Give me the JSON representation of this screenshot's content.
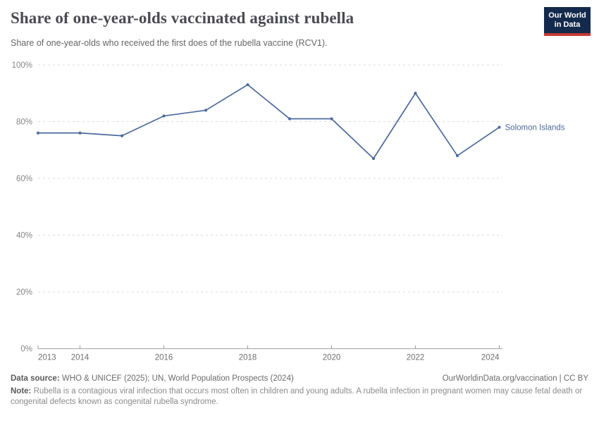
{
  "header": {
    "title": "Share of one-year-olds vaccinated against rubella",
    "subtitle": "Share of one-year-olds who received the first does of the rubella vaccine (RCV1).",
    "logo": {
      "line1": "Our World",
      "line2": "in Data",
      "bg": "#132a4d",
      "accent": "#c63934"
    }
  },
  "chart_data": {
    "type": "line",
    "title": "Share of one-year-olds vaccinated against rubella",
    "x": [
      2013,
      2014,
      2015,
      2016,
      2017,
      2018,
      2019,
      2020,
      2021,
      2022,
      2023,
      2024
    ],
    "series": [
      {
        "name": "Solomon Islands",
        "color": "#4C6A9C",
        "values": [
          76,
          76,
          75,
          82,
          84,
          93,
          81,
          81,
          67,
          90,
          68,
          78
        ]
      }
    ],
    "xlabel": "",
    "ylabel": "",
    "ylim": [
      0,
      100
    ],
    "yticks": [
      0,
      20,
      40,
      60,
      80,
      100
    ],
    "ytick_suffix": "%",
    "xticks": [
      2013,
      2014,
      2016,
      2018,
      2020,
      2022,
      2024
    ],
    "grid": "horizontal-dashed",
    "legend_position": "end-of-line-label",
    "grid_color": "#dcdcdc",
    "axis_color": "#a0a0a0"
  },
  "footer": {
    "datasource_label": "Data source:",
    "datasource": " WHO & UNICEF (2025); UN, World Population Prospects (2024)",
    "rights": "OurWorldinData.org/vaccination | CC BY",
    "note_label": "Note:",
    "note": " Rubella is a contagious viral infection that occurs most often in children and young adults. A rubella infection in pregnant women may cause fetal death or congenital defects known as congenital rubella syndrome."
  }
}
